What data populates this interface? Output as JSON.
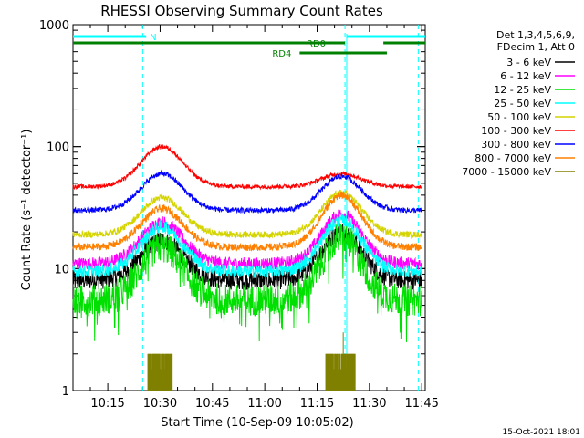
{
  "chart_data": {
    "type": "line",
    "title": "RHESSI Observing Summary Count Rates",
    "xlabel": "Start Time (10-Sep-09 10:05:02)",
    "ylabel": "Count Rate (s⁻¹ detector⁻¹)",
    "yscale": "log",
    "ylim": [
      1,
      1000
    ],
    "xlim": [
      "10:05:02",
      "11:46:00"
    ],
    "y_ticks": [
      "1",
      "10",
      "100",
      "1000"
    ],
    "x_ticks": [
      "10:15",
      "10:30",
      "10:45",
      "11:00",
      "11:15",
      "11:30",
      "11:45"
    ],
    "footer_date": "15-Oct-2021 18:01",
    "legend": {
      "placement": "right",
      "header": [
        "Det 1,3,4,5,6,9,",
        "FDecim 1, Att 0"
      ],
      "entries": [
        {
          "label": "3 - 6 keV",
          "color": "#000000"
        },
        {
          "label": "6 - 12 keV",
          "color": "#ff00ff"
        },
        {
          "label": "12 - 25 keV",
          "color": "#00e000"
        },
        {
          "label": "25 - 50 keV",
          "color": "#00ffff"
        },
        {
          "label": "50 - 100 keV",
          "color": "#d4d400"
        },
        {
          "label": "100 - 300 keV",
          "color": "#ff0000"
        },
        {
          "label": "300 - 800 keV",
          "color": "#0000ff"
        },
        {
          "label": "800 - 7000 keV",
          "color": "#ff8000"
        },
        {
          "label": "7000 - 15000 keV",
          "color": "#808000"
        }
      ]
    },
    "flags": [
      {
        "label": "N",
        "color": "#00ffff",
        "segments": [
          [
            "10:05:02",
            "10:26:00"
          ],
          [
            "11:23:30",
            "11:46:00"
          ]
        ]
      },
      {
        "label": "RD0",
        "color": "#008000",
        "segments": [
          [
            "10:05:02",
            "11:23:00"
          ],
          [
            "11:34:00",
            "11:46:00"
          ]
        ]
      },
      {
        "label": "RD4",
        "color": "#008000",
        "segments": [
          [
            "11:10:00",
            "11:35:00"
          ]
        ]
      }
    ],
    "night_markers": [
      "10:25:00",
      "11:23:00",
      "11:44:00"
    ],
    "series": [
      {
        "name": "3 - 6 keV",
        "color": "#000000",
        "base": 8,
        "peak1": 17,
        "peak2": 20,
        "noise": 0.18
      },
      {
        "name": "6 - 12 keV",
        "color": "#ff00ff",
        "base": 11,
        "peak1": 24,
        "peak2": 28,
        "noise": 0.12
      },
      {
        "name": "12 - 25 keV",
        "color": "#00e000",
        "base": 5.5,
        "peak1": 15,
        "peak2": 18,
        "noise": 0.3
      },
      {
        "name": "25 - 50 keV",
        "color": "#00ffff",
        "base": 9.5,
        "peak1": 22,
        "peak2": 25,
        "noise": 0.12
      },
      {
        "name": "50 - 100 keV",
        "color": "#d4d400",
        "base": 19,
        "peak1": 38,
        "peak2": 42,
        "noise": 0.06
      },
      {
        "name": "100 - 300 keV",
        "color": "#ff0000",
        "base": 47,
        "peak1": 100,
        "peak2": 60,
        "noise": 0.04
      },
      {
        "name": "300 - 800 keV",
        "color": "#0000ff",
        "base": 30,
        "peak1": 60,
        "peak2": 57,
        "noise": 0.05
      },
      {
        "name": "800 - 7000 keV",
        "color": "#ff8000",
        "base": 15,
        "peak1": 31,
        "peak2": 40,
        "noise": 0.07
      }
    ],
    "series_7000": {
      "name": "7000 - 15000 keV",
      "color": "#808000",
      "level": 2,
      "spike": 3
    }
  }
}
